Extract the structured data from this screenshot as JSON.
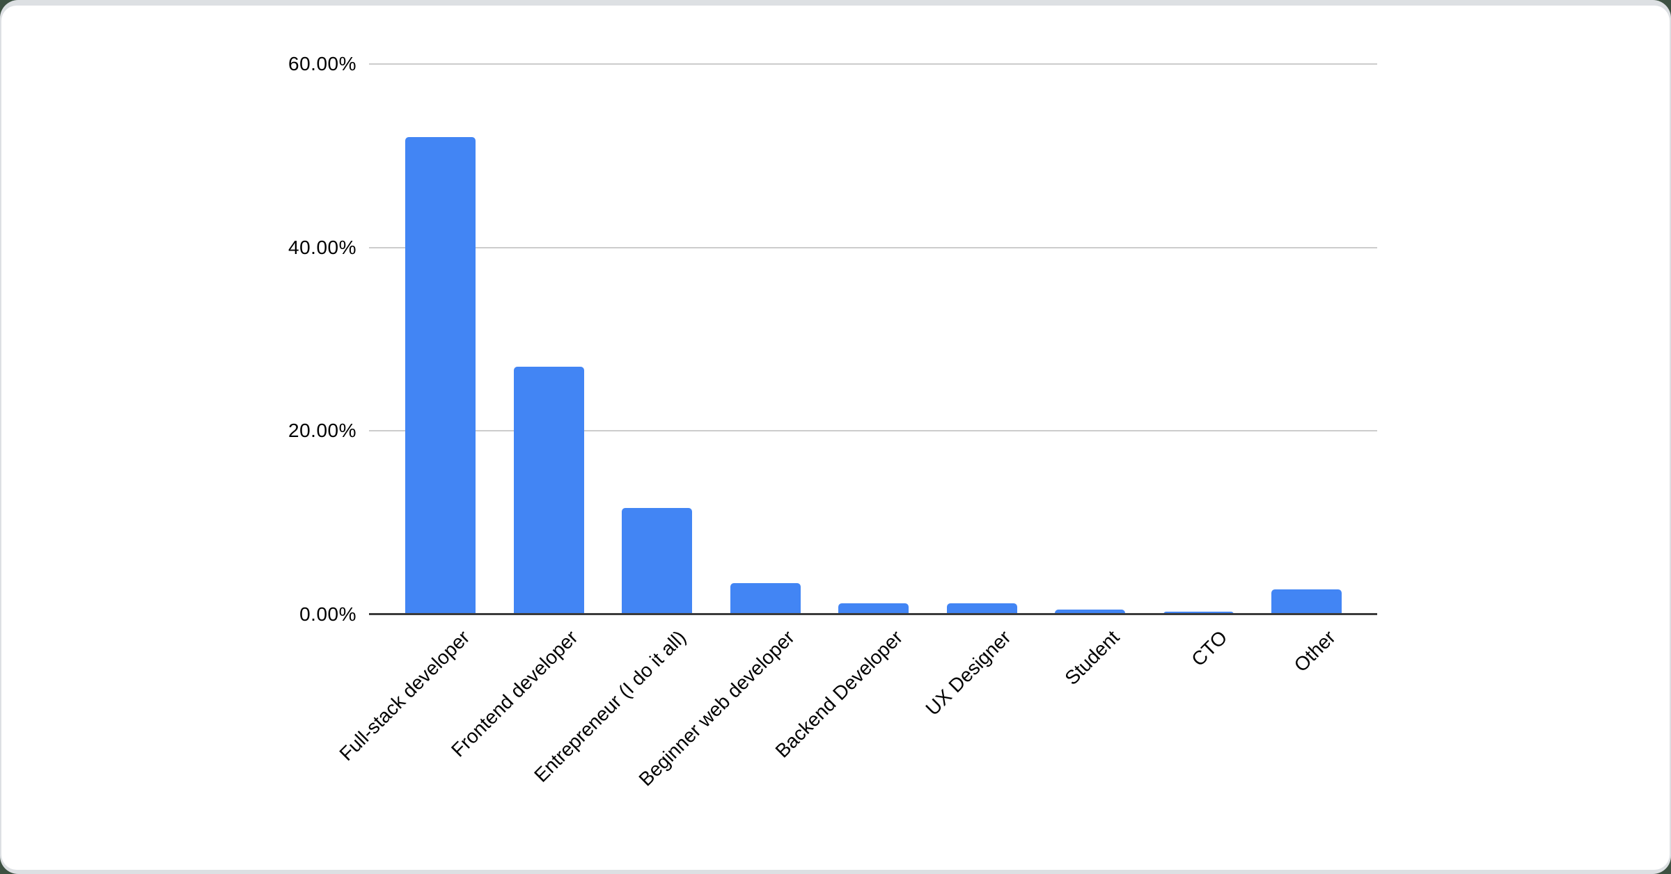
{
  "page": {
    "outer_background_color": "#3d5142",
    "frame_color": "#dde0e3",
    "card_color": "#ffffff"
  },
  "chart_data": {
    "type": "bar",
    "title": "",
    "xlabel": "",
    "ylabel": "",
    "categories": [
      "Full-stack developer",
      "Frontend developer",
      "Entrepreneur (I do it all)",
      "Beginner web developer",
      "Backend Developer",
      "UX Designer",
      "Student",
      "CTO",
      "Other"
    ],
    "values": [
      52,
      27,
      11.6,
      3.4,
      1.2,
      1.2,
      0.5,
      0.3,
      2.7
    ],
    "value_unit": "%",
    "y_tick_labels": [
      "0.00%",
      "20.00%",
      "40.00%",
      "60.00%"
    ],
    "y_tick_values": [
      0,
      20,
      40,
      60
    ],
    "ylim": [
      0,
      60
    ],
    "grid": true,
    "legend": false,
    "x_label_rotation_deg": -45,
    "bar_color": "#4285f4",
    "gridline_color": "#cccccc",
    "axis_line_color": "#3b3b3b",
    "label_color": "#000000"
  }
}
